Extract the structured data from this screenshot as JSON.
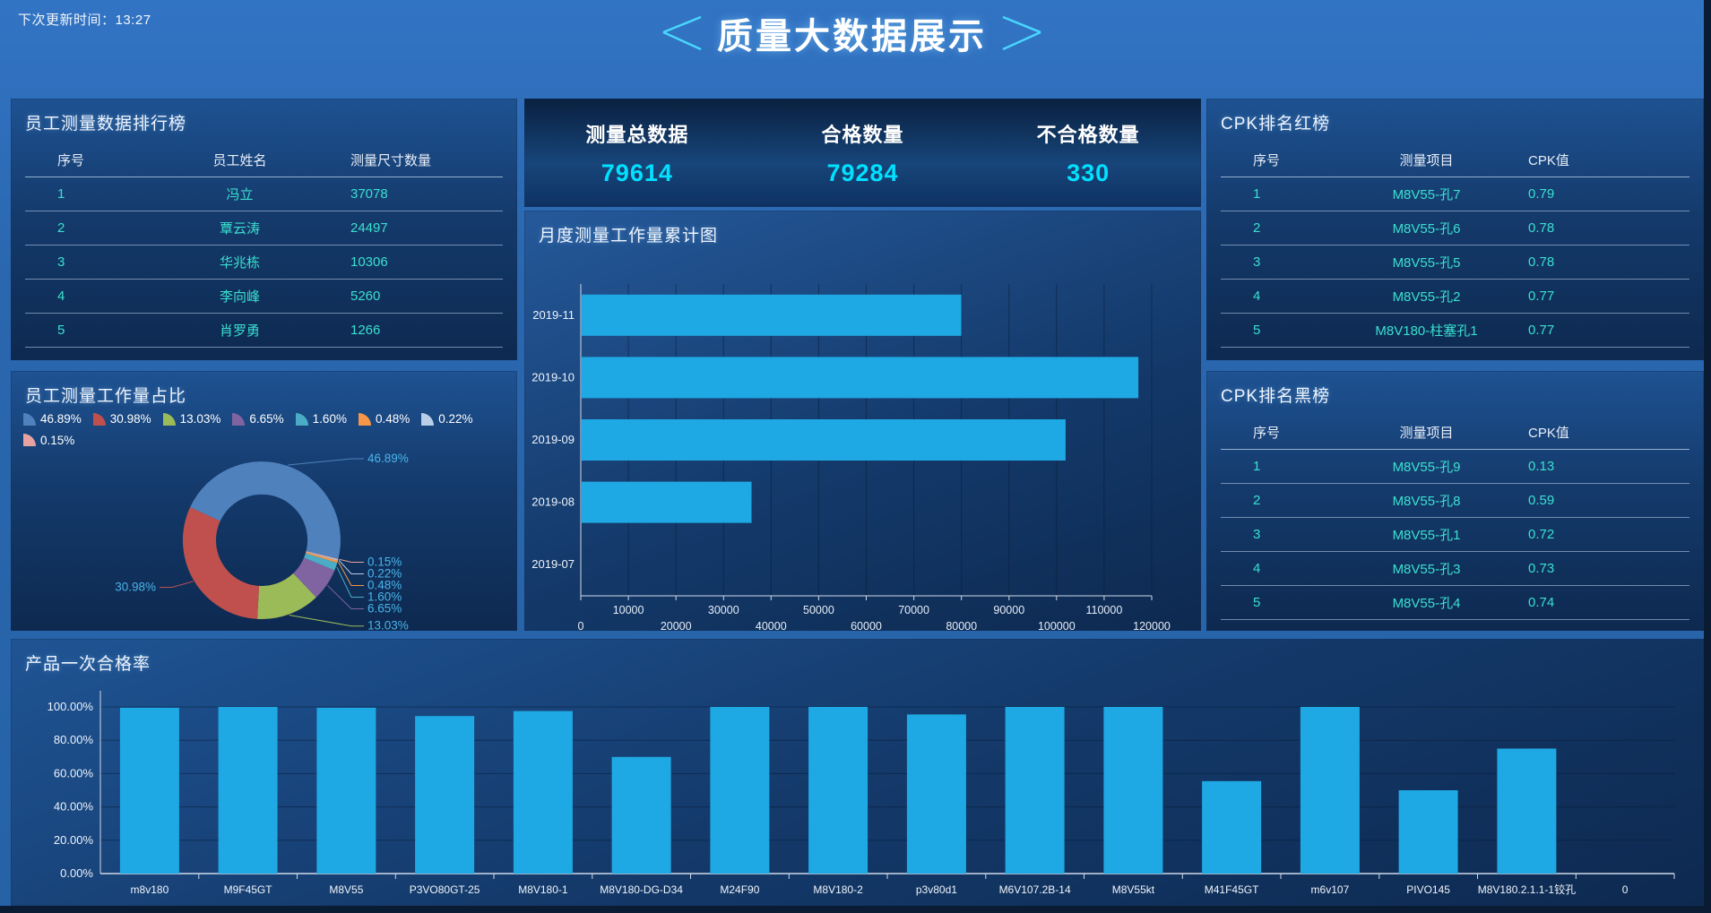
{
  "header": {
    "next_update": "下次更新时间：13:27",
    "title": "质量大数据展示"
  },
  "panels": {
    "employee_ranking": {
      "title": "员工测量数据排行榜",
      "columns": [
        "序号",
        "员工姓名",
        "测量尺寸数量"
      ],
      "rows": [
        [
          "1",
          "冯立",
          "37078"
        ],
        [
          "2",
          "覃云涛",
          "24497"
        ],
        [
          "3",
          "华兆栋",
          "10306"
        ],
        [
          "4",
          "李向峰",
          "5260"
        ],
        [
          "5",
          "肖罗勇",
          "1266"
        ]
      ]
    },
    "workload_share": {
      "title": "员工测量工作量占比"
    },
    "stats": {
      "items": [
        {
          "key": "total",
          "label": "测量总数据",
          "value": "79614"
        },
        {
          "key": "pass",
          "label": "合格数量",
          "value": "79284"
        },
        {
          "key": "fail",
          "label": "不合格数量",
          "value": "330"
        }
      ]
    },
    "monthly": {
      "title": "月度测量工作量累计图"
    },
    "cpk_red": {
      "title": "CPK排名红榜",
      "columns": [
        "序号",
        "测量项目",
        "CPK值"
      ],
      "rows": [
        [
          "1",
          "M8V55-孔7",
          "0.79"
        ],
        [
          "2",
          "M8V55-孔6",
          "0.78"
        ],
        [
          "3",
          "M8V55-孔5",
          "0.78"
        ],
        [
          "4",
          "M8V55-孔2",
          "0.77"
        ],
        [
          "5",
          "M8V180-柱塞孔1",
          "0.77"
        ]
      ]
    },
    "cpk_black": {
      "title": "CPK排名黑榜",
      "columns": [
        "序号",
        "测量项目",
        "CPK值"
      ],
      "rows": [
        [
          "1",
          "M8V55-孔9",
          "0.13"
        ],
        [
          "2",
          "M8V55-孔8",
          "0.59"
        ],
        [
          "3",
          "M8V55-孔1",
          "0.72"
        ],
        [
          "4",
          "M8V55-孔3",
          "0.73"
        ],
        [
          "5",
          "M8V55-孔4",
          "0.74"
        ]
      ]
    },
    "pass_rate": {
      "title": "产品一次合格率"
    }
  },
  "colors": {
    "accent_cyan": "#00e1ff",
    "table_text": "#3ae0cf",
    "bar_blue": "#1fa9e4",
    "pie_label_blue": "#49b4ea"
  },
  "chart_data": [
    {
      "type": "pie",
      "title": "员工测量工作量占比",
      "donut": true,
      "start_angle_deg": -65.2,
      "slices": [
        {
          "label": "46.89%",
          "value": 46.89,
          "color": "#4f81bd"
        },
        {
          "label": "30.98%",
          "value": 30.98,
          "color": "#c0504d"
        },
        {
          "label": "13.03%",
          "value": 13.03,
          "color": "#9bbb59"
        },
        {
          "label": "6.65%",
          "value": 6.65,
          "color": "#8064a2"
        },
        {
          "label": "1.60%",
          "value": 1.6,
          "color": "#4bacc6"
        },
        {
          "label": "0.48%",
          "value": 0.48,
          "color": "#f79646"
        },
        {
          "label": "0.22%",
          "value": 0.22,
          "color": "#b9cde8"
        },
        {
          "label": "0.15%",
          "value": 0.15,
          "color": "#e8a3a0"
        }
      ],
      "draw_order": [
        0,
        7,
        6,
        5,
        4,
        3,
        2,
        1
      ],
      "legend_position": "top"
    },
    {
      "type": "bar-horizontal",
      "title": "月度测量工作量累计图",
      "categories": [
        "2019-11",
        "2019-10",
        "2019-09",
        "2019-08",
        "2019-07"
      ],
      "values": [
        79800,
        117000,
        101700,
        35700,
        0
      ],
      "xlim": [
        0,
        120000
      ],
      "x_tick_labels": [
        "0",
        "10000",
        "20000",
        "30000",
        "40000",
        "50000",
        "60000",
        "70000",
        "80000",
        "90000",
        "100000",
        "110000",
        "120000"
      ],
      "grid": true
    },
    {
      "type": "bar",
      "title": "产品一次合格率",
      "categories": [
        "m8v180",
        "M9F45GT",
        "M8V55",
        "P3VO80GT-25",
        "M8V180-1",
        "M8V180-DG-D34",
        "M24F90",
        "M8V180-2",
        "p3v80d1",
        "M6V107.2B-14",
        "M8V55kt",
        "M41F45GT",
        "m6v107",
        "PIVO145",
        "M8V180.2.1.1-1铰孔",
        "0"
      ],
      "values": [
        99.5,
        100,
        99.5,
        94.5,
        97.5,
        70,
        100,
        100,
        95.5,
        100,
        100,
        55.5,
        100,
        50,
        75,
        0
      ],
      "ylim": [
        0,
        100
      ],
      "y_tick_labels": [
        "0.00%",
        "20.00%",
        "40.00%",
        "60.00%",
        "80.00%",
        "100.00%"
      ],
      "grid": true
    }
  ]
}
